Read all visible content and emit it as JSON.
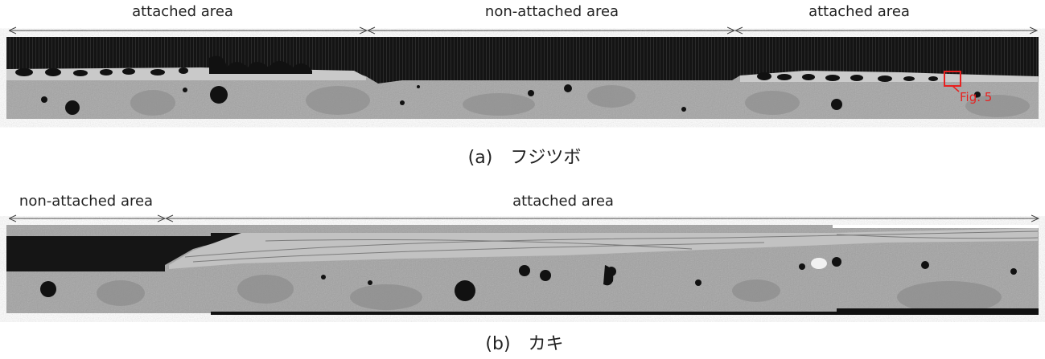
{
  "panel_a": {
    "segments": [
      {
        "label": "attached area"
      },
      {
        "label": "non-attached area"
      },
      {
        "label": "attached area"
      }
    ],
    "annotation": "Fig. 5",
    "caption": "(a)　フジツボ"
  },
  "panel_b": {
    "segments": [
      {
        "label": "non-attached area"
      },
      {
        "label": "attached area"
      }
    ],
    "caption": "(b)　カキ"
  },
  "colors": {
    "background": "#ffffff",
    "annotation": "#e8201f",
    "coating_dark": "#111111",
    "concrete_gray": "#9c9c9c"
  }
}
